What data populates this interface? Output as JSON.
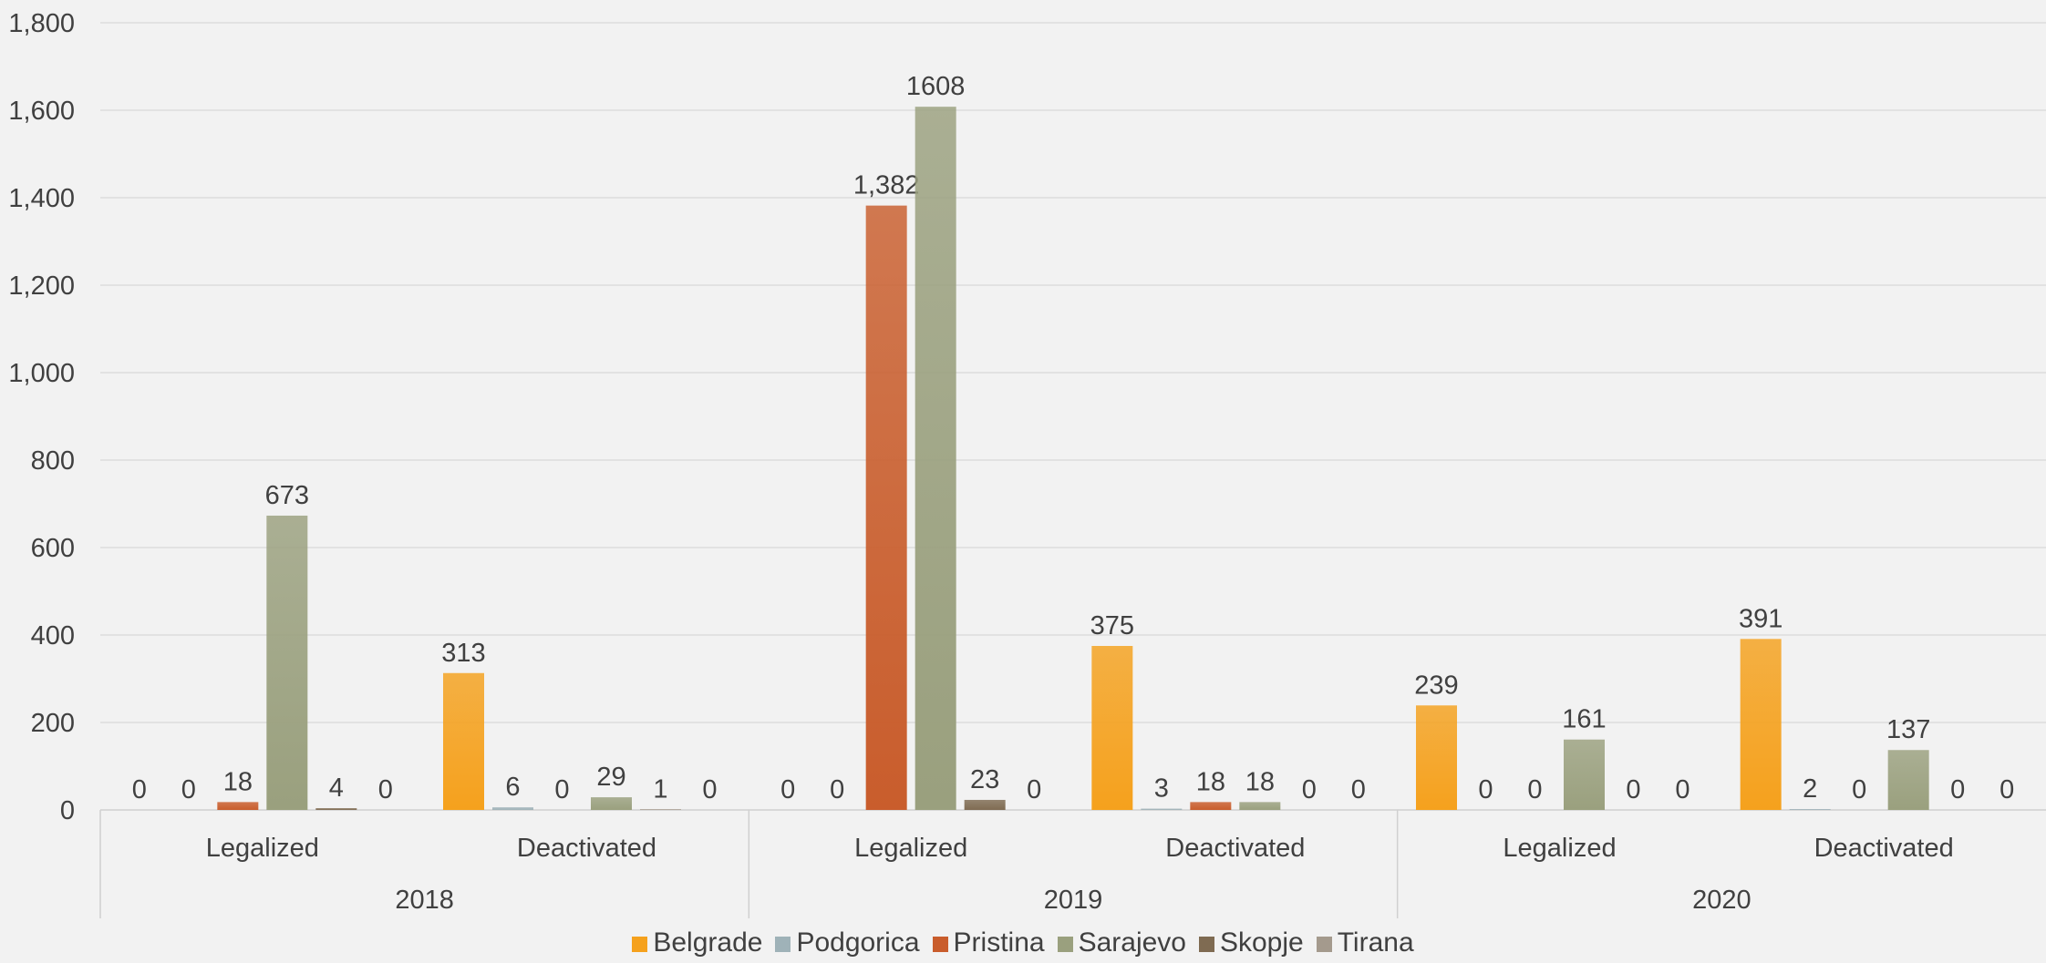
{
  "chart_data": {
    "type": "bar",
    "ylim": [
      0,
      1800
    ],
    "yticks": [
      "0",
      "200",
      "400",
      "600",
      "800",
      "1,000",
      "1,200",
      "1,400",
      "1,600",
      "1,800"
    ],
    "grid": true,
    "legend_position": "bottom",
    "groups": [
      {
        "label": "2018",
        "categories": [
          "Legalized",
          "Deactivated"
        ]
      },
      {
        "label": "2019",
        "categories": [
          "Legalized",
          "Deactivated"
        ]
      },
      {
        "label": "2020",
        "categories": [
          "Legalized",
          "Deactivated"
        ]
      }
    ],
    "series": [
      {
        "name": "Belgrade",
        "color": "#f5a11d",
        "values": [
          0,
          313,
          0,
          375,
          239,
          391
        ],
        "labels": [
          "0",
          "313",
          "0",
          "375",
          "239",
          "391"
        ]
      },
      {
        "name": "Podgorica",
        "color": "#9fb2b8",
        "values": [
          0,
          6,
          0,
          3,
          0,
          2
        ],
        "labels": [
          "0",
          "6",
          "0",
          "3",
          "0",
          "2"
        ]
      },
      {
        "name": "Pristina",
        "color": "#c95d2c",
        "values": [
          18,
          0,
          1382,
          18,
          0,
          0
        ],
        "labels": [
          "18",
          "0",
          "1,382",
          "18",
          "0",
          "0"
        ]
      },
      {
        "name": "Sarajevo",
        "color": "#9aa07e",
        "values": [
          673,
          29,
          1608,
          18,
          161,
          137
        ],
        "labels": [
          "673",
          "29",
          "1608",
          "18",
          "161",
          "137"
        ]
      },
      {
        "name": "Skopje",
        "color": "#7f6b52",
        "values": [
          4,
          1,
          23,
          0,
          0,
          0
        ],
        "labels": [
          "4",
          "1",
          "23",
          "0",
          "0",
          "0"
        ]
      },
      {
        "name": "Tirana",
        "color": "#a49a8d",
        "values": [
          0,
          0,
          0,
          0,
          0,
          0
        ],
        "labels": [
          "0",
          "0",
          "0",
          "0",
          "0",
          "0"
        ]
      }
    ]
  }
}
